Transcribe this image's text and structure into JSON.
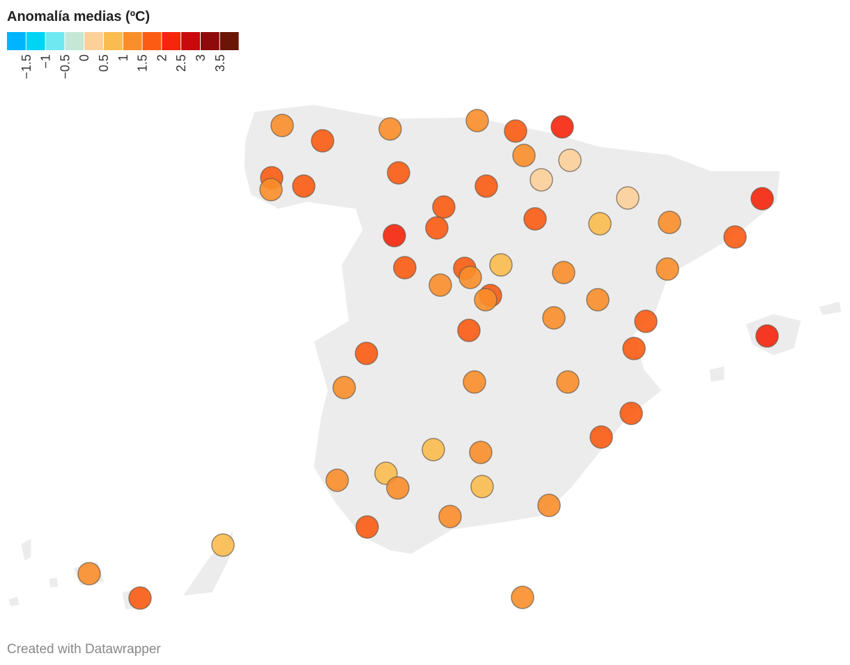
{
  "legend": {
    "title": "Anomalía medias (ºC)",
    "colors": [
      "#00b4ff",
      "#00d4f5",
      "#6fe8f2",
      "#c5e8d6",
      "#fdd09a",
      "#fbbc4f",
      "#f98e2a",
      "#fb5b12",
      "#f6250c",
      "#c9090c",
      "#8e0b0b",
      "#6a1505"
    ],
    "breaks": [
      {
        "value": -1.5,
        "label": "−1.5"
      },
      {
        "value": -1,
        "label": "−1"
      },
      {
        "value": -0.5,
        "label": "−0.5"
      },
      0,
      0.5,
      1,
      1.5,
      2,
      2.5,
      3,
      3.5
    ]
  },
  "stations": {
    "values": [
      1.2,
      1.7,
      1.2,
      1.2,
      1.7,
      2.2,
      1.2,
      0.3,
      1.7,
      1.2,
      1.7,
      1.7,
      1.7,
      0.3,
      0.3,
      2.2,
      1.7,
      1.7,
      2.2,
      1.7,
      0.8,
      1.2,
      1.7,
      1.7,
      1.7,
      0.8,
      1.2,
      1.2,
      1.2,
      1.2,
      1.7,
      1.2,
      1.2,
      1.7,
      1.2,
      1.7,
      2.2,
      1.7,
      1.7,
      1.2,
      1.2,
      1.2,
      1.7,
      1.7,
      0.8,
      1.2,
      0.8,
      1.2,
      1.2,
      0.8,
      1.2,
      1.2,
      1.7,
      0.8,
      1.2,
      1.7,
      1.2
    ]
  },
  "footer": "Created with Datawrapper"
}
